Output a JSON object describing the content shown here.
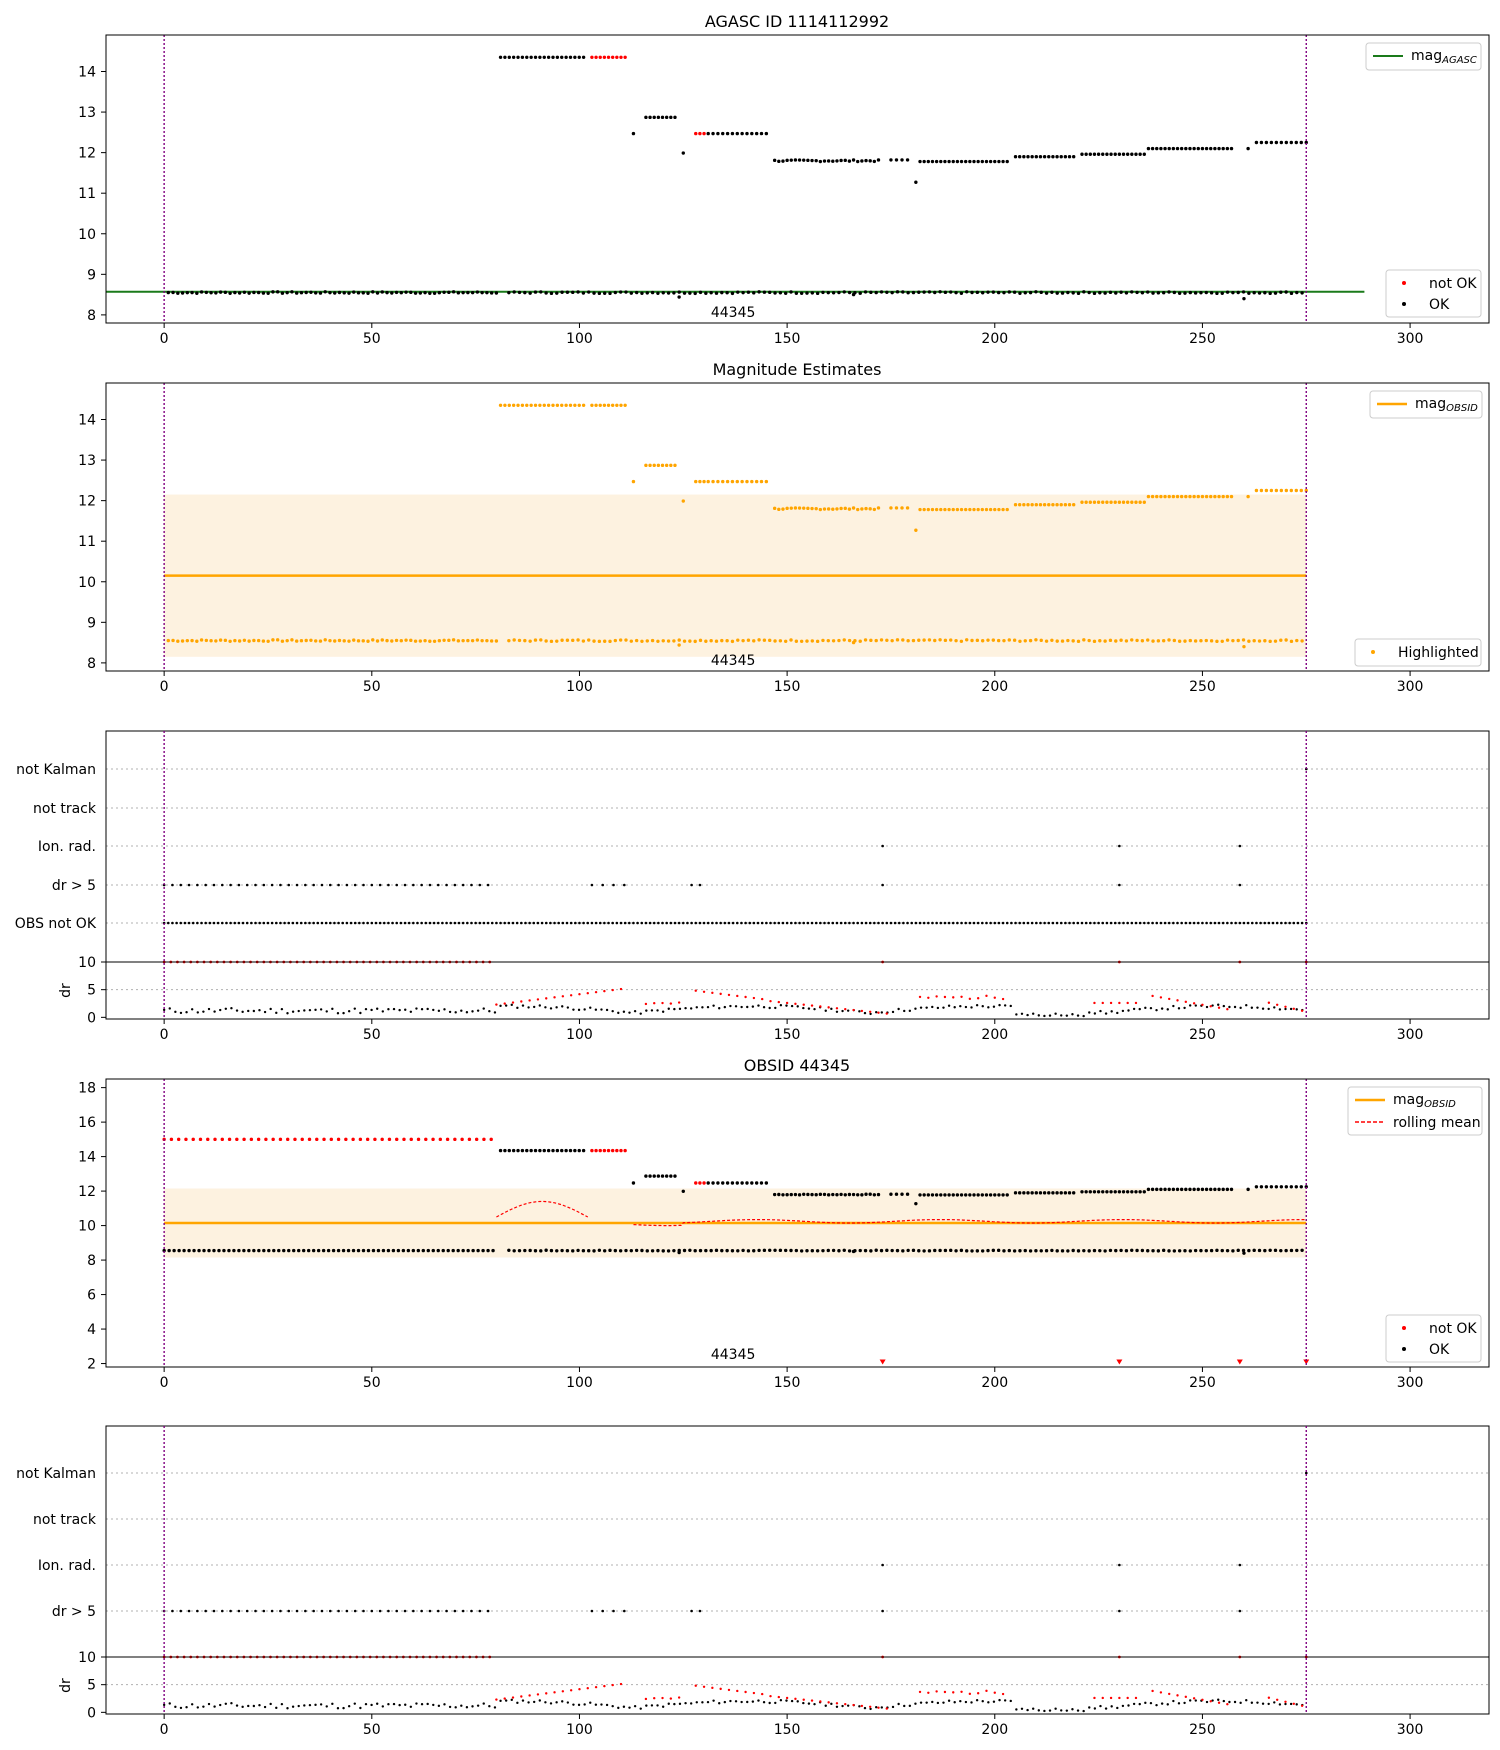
{
  "figure": {
    "titles": [
      "AGASC ID 1114112992",
      "Magnitude Estimates",
      "OBSID 44345"
    ],
    "obsid_label": "44345"
  },
  "colors": {
    "ok": "#000000",
    "not_ok": "#ff0000",
    "agasc_line": "#1a7a1a",
    "obsid_line": "#ffa500",
    "band": "#fdf2e0",
    "vline": "#800080",
    "rolling_mean": "#ff0000"
  },
  "chart_data": [
    {
      "type": "scatter",
      "title": "AGASC ID 1114112992",
      "xlim": [
        -14,
        319
      ],
      "ylim": [
        7.8,
        14.9
      ],
      "xticks": [
        0,
        50,
        100,
        150,
        200,
        250,
        300
      ],
      "yticks": [
        8,
        9,
        10,
        11,
        12,
        13,
        14
      ],
      "vlines": [
        0,
        275
      ],
      "annotation": {
        "text": "44345",
        "x": 137,
        "y": 8.1
      },
      "hline": {
        "name": "mag_AGASC",
        "y": 8.57,
        "x": [
          -14,
          289
        ]
      },
      "legend_top": "top-right",
      "legend_bottom": "bottom-right",
      "legend": [
        "mag_AGASC",
        "not OK",
        "OK"
      ],
      "segments": [
        {
          "x0": 1,
          "x1": 80,
          "n": 70,
          "base": 8.55,
          "amp": 0.02,
          "status": "ok"
        },
        {
          "x0": 81,
          "x1": 101,
          "n": 20,
          "base": 14.35,
          "amp": 0.0,
          "status": "ok"
        },
        {
          "x0": 103,
          "x1": 111,
          "n": 9,
          "base": 14.35,
          "amp": 0.0,
          "status": "not_ok"
        },
        {
          "x0": 116,
          "x1": 123,
          "n": 8,
          "base": 12.87,
          "amp": 0.0,
          "status": "ok"
        },
        {
          "x0": 128,
          "x1": 130,
          "n": 3,
          "base": 12.47,
          "amp": 0.0,
          "status": "not_ok"
        },
        {
          "x0": 131,
          "x1": 145,
          "n": 13,
          "base": 12.47,
          "amp": 0.0,
          "status": "ok"
        },
        {
          "x0": 147,
          "x1": 172,
          "n": 26,
          "base": 11.8,
          "amp": 0.02,
          "status": "ok"
        },
        {
          "x0": 175,
          "x1": 179,
          "n": 4,
          "base": 11.82,
          "amp": 0.0,
          "status": "ok"
        },
        {
          "x0": 182,
          "x1": 203,
          "n": 22,
          "base": 11.78,
          "amp": 0.0,
          "status": "ok"
        },
        {
          "x0": 205,
          "x1": 219,
          "n": 15,
          "base": 11.9,
          "amp": 0.0,
          "status": "ok"
        },
        {
          "x0": 221,
          "x1": 236,
          "n": 16,
          "base": 11.96,
          "amp": 0.0,
          "status": "ok"
        },
        {
          "x0": 237,
          "x1": 257,
          "n": 21,
          "base": 12.1,
          "amp": 0.0,
          "status": "ok"
        },
        {
          "x0": 263,
          "x1": 275,
          "n": 11,
          "base": 12.25,
          "amp": 0.0,
          "status": "ok"
        },
        {
          "x0": 83,
          "x1": 274,
          "n": 150,
          "base": 8.55,
          "amp": 0.02,
          "status": "ok"
        }
      ],
      "points": [
        {
          "x": 113,
          "y": 12.47,
          "status": "ok"
        },
        {
          "x": 125,
          "y": 11.99,
          "status": "ok"
        },
        {
          "x": 124,
          "y": 8.44,
          "status": "ok"
        },
        {
          "x": 181,
          "y": 11.27,
          "status": "ok"
        },
        {
          "x": 166,
          "y": 8.5,
          "status": "ok"
        },
        {
          "x": 260,
          "y": 8.4,
          "status": "ok"
        },
        {
          "x": 261,
          "y": 12.1,
          "status": "ok"
        }
      ]
    },
    {
      "type": "scatter",
      "title": "Magnitude Estimates",
      "xlim": [
        -14,
        319
      ],
      "ylim": [
        7.8,
        14.9
      ],
      "xticks": [
        0,
        50,
        100,
        150,
        200,
        250,
        300
      ],
      "yticks": [
        8,
        9,
        10,
        11,
        12,
        13,
        14
      ],
      "vlines": [
        0,
        275
      ],
      "annotation": {
        "text": "44345",
        "x": 137,
        "y": 8.1
      },
      "hline": {
        "name": "mag_OBSID",
        "y": 10.15,
        "x": [
          0,
          275
        ]
      },
      "band": {
        "y0": 8.15,
        "y1": 12.15,
        "x": [
          0,
          275
        ]
      },
      "legend": [
        "mag_OBSID",
        "Highlighted"
      ],
      "legend_top": "top-right",
      "legend_bottom": "bottom-right"
    },
    {
      "type": "scatter",
      "title": "",
      "flags": [
        "not Kalman",
        "not track",
        "Ion. rad.",
        "dr > 5",
        "OBS not OK"
      ],
      "dr_ylabel": "dr",
      "dr_yticks": [
        0,
        5,
        10
      ],
      "xticks": [
        0,
        50,
        100,
        150,
        200,
        250,
        300
      ],
      "vlines": [
        0,
        275
      ],
      "flag_points": {
        "not Kalman": [
          275
        ],
        "not track": [],
        "Ion. rad.": [
          173,
          230,
          259
        ],
        "dr > 5": "0-79 step 2, 103-111 step 3, 127, 129, 173, 230, 259",
        "OBS not OK": "0-275 all"
      }
    },
    {
      "type": "scatter",
      "title": "OBSID 44345",
      "xlim": [
        -14,
        319
      ],
      "ylim": [
        1.8,
        18.5
      ],
      "xticks": [
        0,
        50,
        100,
        150,
        200,
        250,
        300
      ],
      "yticks": [
        2,
        4,
        6,
        8,
        10,
        12,
        14,
        16,
        18
      ],
      "vlines": [
        0,
        275
      ],
      "annotation": {
        "text": "44345",
        "x": 137,
        "y": 2.6
      },
      "hline": {
        "name": "mag_OBSID",
        "y": 10.15,
        "x": [
          0,
          275
        ]
      },
      "band": {
        "y0": 8.15,
        "y1": 12.15,
        "x": [
          0,
          275
        ]
      },
      "legend": [
        "mag_OBSID",
        "rolling mean",
        "not OK",
        "OK"
      ],
      "legend_top": "top-right",
      "legend_bottom": "bottom-right",
      "markers_bottom": [
        173,
        230,
        259,
        275
      ]
    },
    {
      "type": "scatter",
      "title": "",
      "flags": [
        "not Kalman",
        "not track",
        "Ion. rad.",
        "dr > 5"
      ],
      "dr_ylabel": "dr",
      "dr_yticks": [
        0,
        5,
        10
      ],
      "xticks": [
        0,
        50,
        100,
        150,
        200,
        250,
        300
      ],
      "vlines": [
        0,
        275
      ]
    }
  ],
  "legend_labels": {
    "mag": "mag",
    "agasc_sub": "AGASC",
    "obsid_sub": "OBSID",
    "not_ok": "not OK",
    "ok": "OK",
    "highlighted": "Highlighted",
    "rolling_mean": "rolling mean"
  }
}
